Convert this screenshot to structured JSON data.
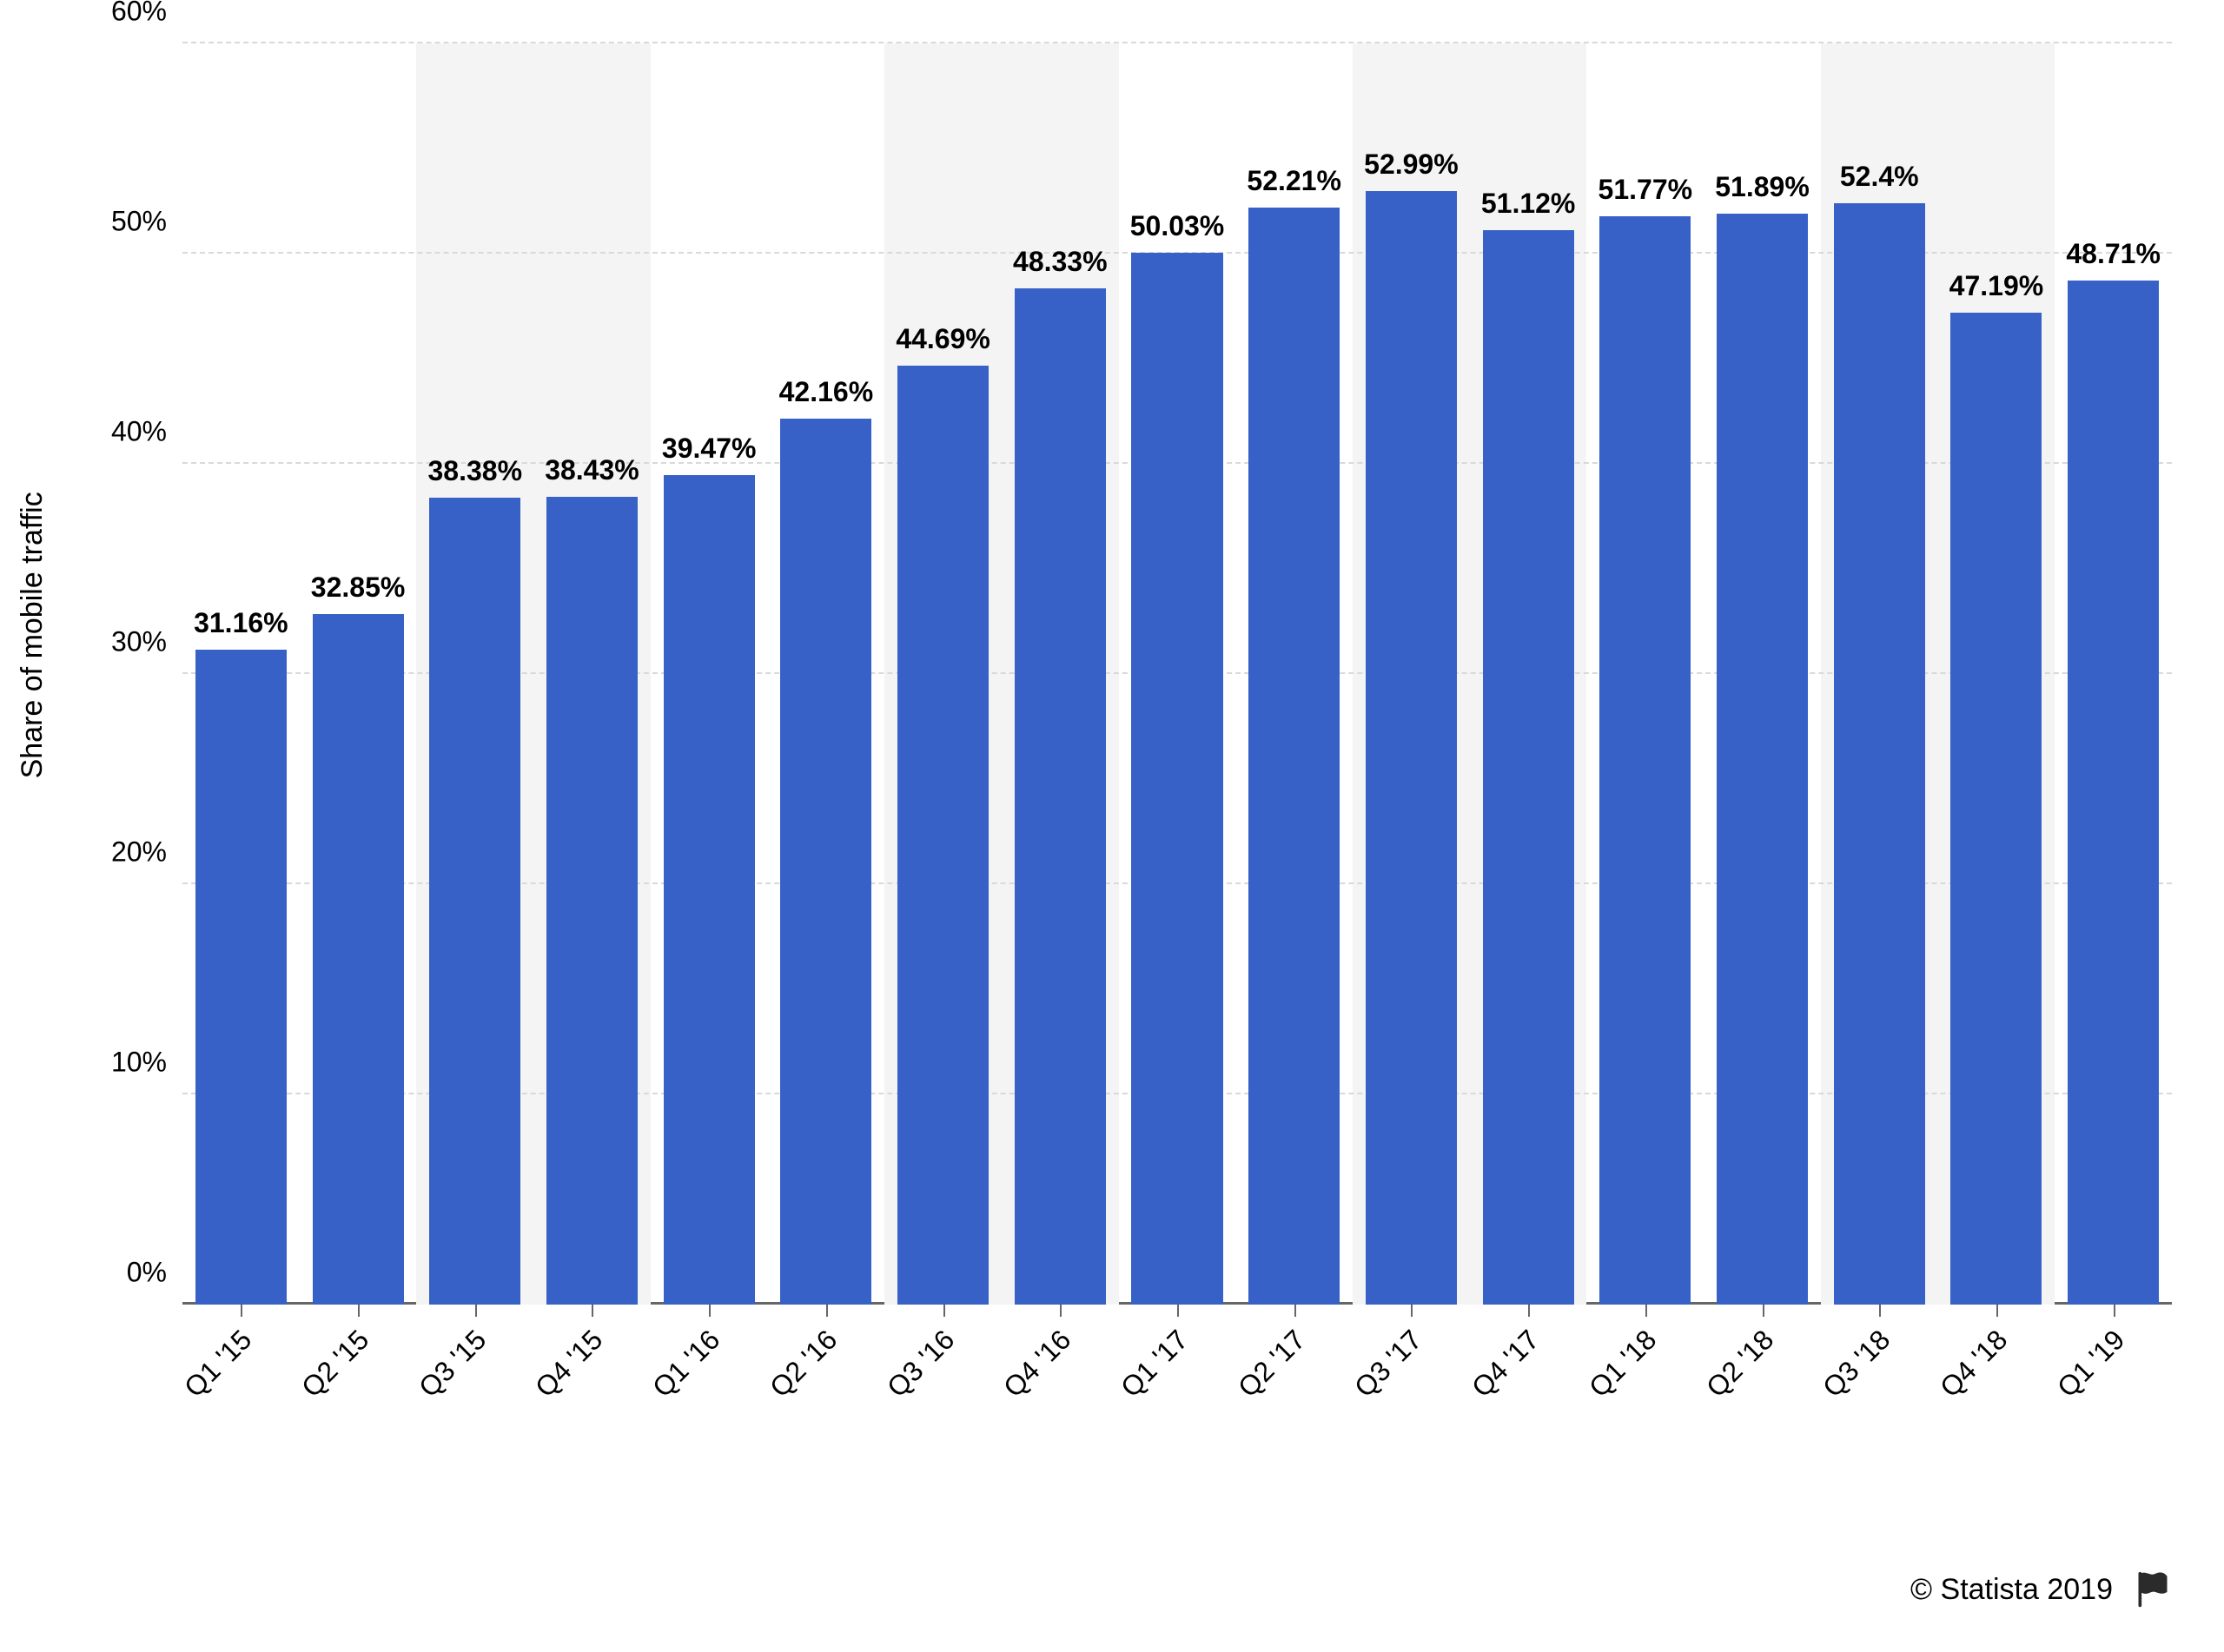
{
  "chart": {
    "type": "bar",
    "y_axis_title": "Share of mobile traffic",
    "ylim": [
      0,
      60
    ],
    "ytick_step": 10,
    "ytick_suffix": "%",
    "categories": [
      "Q1 '15",
      "Q2 '15",
      "Q3 '15",
      "Q4 '15",
      "Q1 '16",
      "Q2 '16",
      "Q3 '16",
      "Q4 '16",
      "Q1 '17",
      "Q2 '17",
      "Q3 '17",
      "Q4 '17",
      "Q1 '18",
      "Q2 '18",
      "Q3 '18",
      "Q4 '18",
      "Q1 '19"
    ],
    "values": [
      31.16,
      32.85,
      38.38,
      38.43,
      39.47,
      42.16,
      44.69,
      48.33,
      50.03,
      52.21,
      52.99,
      51.12,
      51.77,
      51.89,
      52.4,
      47.19,
      48.71
    ],
    "value_labels": [
      "31.16%",
      "32.85%",
      "38.38%",
      "38.43%",
      "39.47%",
      "42.16%",
      "44.69%",
      "48.33%",
      "50.03%",
      "52.21%",
      "52.99%",
      "51.12%",
      "51.77%",
      "51.89%",
      "52.4%",
      "47.19%",
      "48.71%"
    ],
    "bar_color": "#3761c6",
    "background_color": "#ffffff",
    "alt_band_color": "#f4f4f4",
    "grid_color": "#d9d9d9",
    "axis_color": "#666666",
    "bar_width_ratio": 0.78,
    "tick_fontsize": 32,
    "value_label_fontsize": 32,
    "axis_title_fontsize": 34,
    "x_label_rotation_deg": -45
  },
  "footer": {
    "copyright": "© Statista 2019",
    "fontsize": 34
  }
}
